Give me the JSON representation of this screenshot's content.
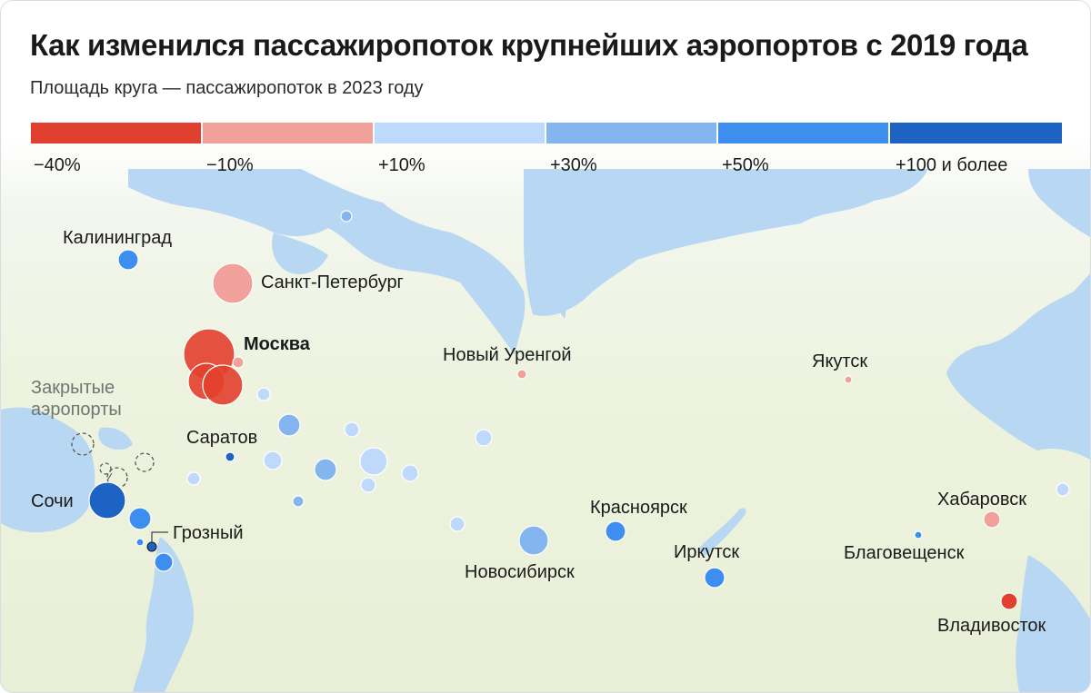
{
  "title": "Как изменился пассажиропоток крупнейших аэропортов с 2019 года",
  "subtitle": "Площадь круга — пассажиропоток в 2023 году",
  "legend": {
    "segments": [
      {
        "label": "−40%",
        "color": "#e2402e"
      },
      {
        "label": "−10%",
        "color": "#f0a199"
      },
      {
        "label": "+10%",
        "color": "#bed9fb"
      },
      {
        "label": "+30%",
        "color": "#85b5ef"
      },
      {
        "label": "+50%",
        "color": "#3e8ef0"
      },
      {
        "label": "+100 и более",
        "color": "#1c63c4"
      }
    ]
  },
  "closed_label": "Закрытые аэропорты",
  "cities": {
    "kaliningrad": "Калининград",
    "spb": "Санкт-Петербург",
    "moscow": "Москва",
    "saratov": "Саратов",
    "sochi": "Сочи",
    "grozny": "Грозный",
    "urengoy": "Новый Уренгой",
    "yakutsk": "Якутск",
    "krasnoyarsk": "Красноярск",
    "novosibirsk": "Новосибирск",
    "irkutsk": "Иркутск",
    "khabarovsk": "Хабаровск",
    "blagoveshchensk": "Благовещенск",
    "vladivostok": "Владивосток"
  },
  "colors": {
    "water": "#b7d6f2",
    "land": "#edf3df",
    "closed_outline": "#555555"
  }
}
